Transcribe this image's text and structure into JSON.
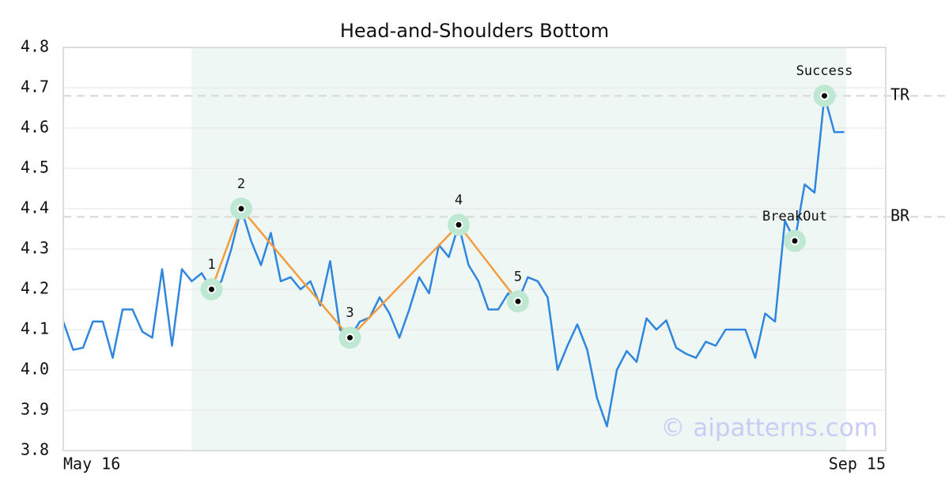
{
  "chart_data": {
    "type": "line",
    "title": "Head-and-Shoulders Bottom",
    "values": [
      4.12,
      4.05,
      4.055,
      4.12,
      4.12,
      4.03,
      4.15,
      4.15,
      4.095,
      4.08,
      4.25,
      4.06,
      4.25,
      4.22,
      4.24,
      4.2,
      4.22,
      4.3,
      4.4,
      4.32,
      4.26,
      4.34,
      4.22,
      4.23,
      4.2,
      4.22,
      4.16,
      4.27,
      4.1,
      4.08,
      4.12,
      4.13,
      4.18,
      4.14,
      4.08,
      4.15,
      4.23,
      4.19,
      4.31,
      4.28,
      4.36,
      4.26,
      4.22,
      4.15,
      4.15,
      4.19,
      4.17,
      4.23,
      4.22,
      4.18,
      4.0,
      4.06,
      4.113,
      4.05,
      3.93,
      3.86,
      4.0,
      4.047,
      4.02,
      4.128,
      4.1,
      4.123,
      4.055,
      4.04,
      4.03,
      4.07,
      4.06,
      4.1,
      4.1,
      4.1,
      4.03,
      4.14,
      4.12,
      4.37,
      4.32,
      4.46,
      4.44,
      4.68,
      4.59,
      4.59
    ],
    "color": "#2e86de",
    "xlim": [
      0,
      83.2
    ],
    "xticks": [
      {
        "value": 0,
        "label": "May 16"
      },
      {
        "value": 83.2,
        "label": "Sep 15"
      }
    ],
    "ylim": [
      3.8,
      4.8
    ],
    "yticks": [
      3.8,
      3.9,
      {
        "value": 4,
        "label": "4.0"
      },
      4.1,
      4.2,
      4.3,
      4.4,
      4.5,
      4.6,
      4.7,
      4.8
    ],
    "grid": true,
    "pattern_span": [
      13,
      79.2
    ],
    "pattern_color": "#f39c3d",
    "pattern_points": [
      {
        "label": "1",
        "x": 15,
        "y": 4.2
      },
      {
        "label": "2",
        "x": 18,
        "y": 4.4
      },
      {
        "label": "3",
        "x": 29,
        "y": 4.08
      },
      {
        "label": "4",
        "x": 40,
        "y": 4.36
      },
      {
        "label": "5",
        "x": 46,
        "y": 4.17
      }
    ],
    "signals": [
      {
        "label": "BreakOut",
        "x": 74,
        "y": 4.32
      },
      {
        "label": "Success",
        "x": 77,
        "y": 4.68
      }
    ],
    "levels": [
      {
        "label": "TR",
        "value": 4.68
      },
      {
        "label": "BR",
        "value": 4.38
      }
    ],
    "watermark": "© aipatterns.com"
  }
}
